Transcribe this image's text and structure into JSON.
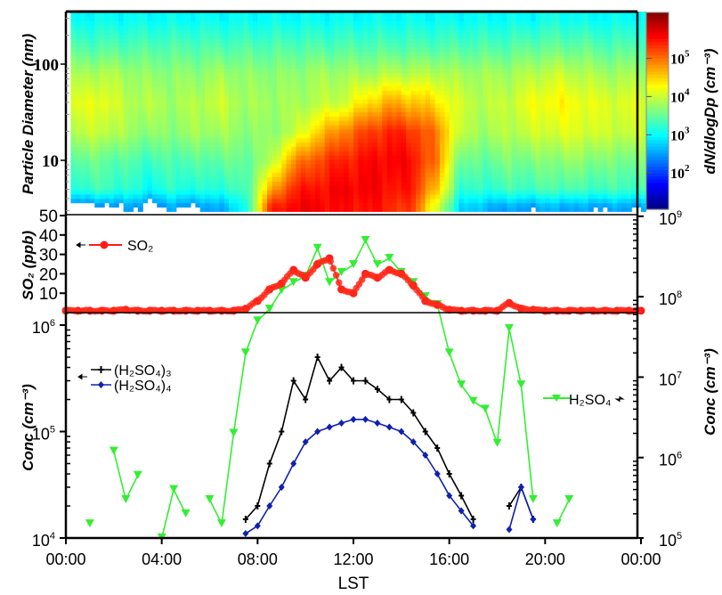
{
  "chart_data": [
    {
      "type": "heatmap",
      "panel": "size-distribution",
      "ylabel": "Particle Diameter (nm)",
      "yscale": "log",
      "ylim_nm": [
        2.7,
        345
      ],
      "yticks": [
        "100",
        "10"
      ],
      "ytick_values": [
        100,
        10
      ],
      "hours": [
        0,
        1,
        2,
        3,
        4,
        5,
        6,
        7,
        8,
        9,
        10,
        11,
        12,
        13,
        14,
        15,
        16,
        17,
        18,
        19,
        20,
        21,
        22,
        23
      ],
      "diameters_nm": [
        3.3,
        5,
        10,
        20,
        40,
        80,
        150,
        300
      ],
      "log10_dNdlogDp": [
        [
          2.3,
          3.2,
          3.5,
          3.9,
          4.1,
          3.8,
          3.4,
          3.0
        ],
        [
          2.3,
          3.3,
          3.5,
          4.0,
          4.2,
          3.9,
          3.4,
          3.0
        ],
        [
          2.5,
          3.2,
          3.4,
          3.8,
          3.9,
          3.8,
          3.4,
          3.0
        ],
        [
          2.3,
          3.0,
          3.3,
          3.7,
          3.9,
          3.7,
          3.4,
          3.0
        ],
        [
          2.5,
          3.2,
          3.4,
          3.7,
          3.8,
          3.7,
          3.4,
          3.0
        ],
        [
          2.4,
          3.1,
          3.4,
          3.8,
          3.9,
          3.7,
          3.4,
          3.0
        ],
        [
          2.6,
          3.2,
          3.5,
          3.8,
          4.0,
          3.8,
          3.4,
          3.0
        ],
        [
          3.0,
          3.3,
          3.5,
          3.7,
          3.8,
          3.7,
          3.4,
          3.0
        ],
        [
          5.3,
          4.6,
          3.8,
          3.7,
          3.8,
          3.7,
          3.4,
          3.0
        ],
        [
          5.6,
          5.4,
          4.8,
          3.9,
          3.8,
          3.7,
          3.4,
          3.0
        ],
        [
          5.6,
          5.5,
          5.2,
          4.5,
          3.9,
          3.8,
          3.4,
          3.0
        ],
        [
          5.5,
          5.6,
          5.4,
          4.9,
          4.0,
          3.8,
          3.4,
          3.0
        ],
        [
          5.5,
          5.6,
          5.5,
          5.2,
          4.4,
          3.8,
          3.4,
          3.0
        ],
        [
          5.4,
          5.5,
          5.6,
          5.4,
          4.7,
          3.9,
          3.4,
          3.0
        ],
        [
          5.2,
          5.4,
          5.5,
          5.3,
          4.6,
          3.9,
          3.4,
          3.0
        ],
        [
          4.0,
          4.5,
          4.9,
          4.9,
          4.4,
          3.9,
          3.4,
          3.0
        ],
        [
          2.8,
          3.2,
          3.5,
          3.9,
          4.0,
          3.8,
          3.4,
          3.0
        ],
        [
          2.6,
          3.2,
          3.5,
          3.8,
          3.9,
          3.8,
          3.4,
          3.0
        ],
        [
          2.5,
          3.3,
          3.6,
          3.9,
          4.0,
          3.8,
          3.4,
          3.0
        ],
        [
          2.5,
          3.3,
          3.6,
          4.0,
          4.2,
          3.9,
          3.5,
          3.0
        ],
        [
          2.6,
          3.4,
          3.7,
          4.1,
          4.3,
          4.0,
          3.5,
          3.1
        ],
        [
          2.5,
          3.3,
          3.7,
          4.1,
          4.2,
          3.9,
          3.5,
          3.0
        ],
        [
          2.5,
          3.3,
          3.6,
          4.0,
          4.1,
          3.8,
          3.4,
          3.0
        ],
        [
          2.5,
          3.3,
          3.6,
          4.0,
          4.1,
          3.8,
          3.4,
          3.0
        ]
      ],
      "colorbar": {
        "label": "dN/dlogDp (cm⁻³)",
        "scale": "log",
        "range_log10": [
          1.05,
          6.2
        ],
        "ticks": [
          "10^5",
          "10^4",
          "10^3",
          "10^2"
        ],
        "tick_values_log10": [
          5,
          4,
          3,
          2
        ],
        "colormap": "jet"
      }
    },
    {
      "type": "line",
      "panel": "so2",
      "ylabel": "SO₂ (ppb)",
      "ylim": [
        0,
        50
      ],
      "yticks": [
        "50",
        "40",
        "30",
        "20",
        "10"
      ],
      "ytick_values": [
        50,
        40,
        30,
        20,
        10
      ],
      "x_hours_step": 0.5,
      "series": [
        {
          "name": "SO₂",
          "color": "#ff1a1a",
          "marker": "circle",
          "values": [
            1,
            1,
            1,
            1,
            1,
            1.5,
            1,
            1,
            1,
            1,
            1,
            1,
            1,
            1,
            1,
            2,
            6,
            12,
            15,
            22,
            18,
            25,
            28,
            12,
            10,
            20,
            18,
            22,
            20,
            14,
            6,
            4,
            1.5,
            1,
            1,
            1,
            1,
            5,
            2,
            1.5,
            1,
            1,
            1,
            1,
            1,
            1,
            1,
            1,
            1
          ]
        }
      ],
      "legend": {
        "label": "SO₂",
        "axis_arrow": "left"
      }
    },
    {
      "type": "line",
      "panel": "sulfuric-acid",
      "xlabel": "LST",
      "xticks": [
        "00:00",
        "04:00",
        "08:00",
        "12:00",
        "16:00",
        "20:00",
        "00:00"
      ],
      "xlim_hours": [
        0,
        24
      ],
      "x_hours_step": 0.5,
      "ylabel_left": "Conc (cm⁻³)",
      "ylim_left": [
        10000,
        1000000
      ],
      "yticks_left": [
        "10^6",
        "10^5",
        "10^4"
      ],
      "ytick_values_left": [
        1000000,
        100000,
        10000
      ],
      "ylabel_right": "Conc (cm⁻³)",
      "ylim_right": [
        100000,
        1000000000
      ],
      "yticks_right": [
        "10^9",
        "10^8",
        "10^7",
        "10^6",
        "10^5"
      ],
      "ytick_values_right": [
        1000000000,
        100000000,
        10000000,
        1000000,
        100000
      ],
      "series": [
        {
          "name": "(H₂SO₄)₃",
          "axis": "left",
          "color": "#000000",
          "marker": "plus",
          "values": [
            null,
            null,
            null,
            null,
            null,
            null,
            null,
            null,
            null,
            null,
            null,
            null,
            null,
            null,
            null,
            15000,
            20000,
            50000,
            100000,
            300000,
            200000,
            500000,
            300000,
            400000,
            300000,
            300000,
            250000,
            200000,
            200000,
            150000,
            100000,
            70000,
            40000,
            25000,
            15000,
            null,
            null,
            20000,
            30000,
            15000,
            null,
            null,
            null,
            null,
            null,
            null,
            null,
            null,
            null
          ]
        },
        {
          "name": "(H₂SO₄)₄",
          "axis": "left",
          "color": "#1020b0",
          "marker": "diamond",
          "values": [
            null,
            null,
            null,
            null,
            null,
            null,
            null,
            null,
            null,
            null,
            null,
            null,
            null,
            null,
            null,
            11000,
            13000,
            20000,
            30000,
            50000,
            80000,
            100000,
            110000,
            120000,
            130000,
            130000,
            120000,
            110000,
            100000,
            80000,
            60000,
            40000,
            25000,
            18000,
            13000,
            null,
            null,
            12000,
            30000,
            15000,
            null,
            null,
            null,
            null,
            null,
            null,
            null,
            null,
            null
          ]
        },
        {
          "name": "H₂SO₄",
          "axis": "right",
          "color": "#33ee33",
          "marker": "triangle-down",
          "values": [
            null,
            null,
            150000,
            null,
            1200000,
            300000,
            600000,
            null,
            100000,
            400000,
            200000,
            null,
            300000,
            150000,
            2000000,
            20000000,
            50000000,
            70000000,
            120000000,
            150000000,
            180000000,
            400000000,
            150000000,
            200000000,
            250000000,
            500000000,
            250000000,
            300000000,
            200000000,
            150000000,
            100000000,
            80000000,
            20000000,
            8000000,
            5000000,
            4000000,
            1500000,
            40000000,
            8000000,
            300000,
            null,
            150000,
            300000,
            null,
            null,
            null,
            null,
            null,
            null
          ]
        }
      ],
      "legend": {
        "left_group": [
          "(H₂SO₄)₃",
          "(H₂SO₄)₄"
        ],
        "right_group": [
          "H₂SO₄"
        ]
      }
    }
  ]
}
